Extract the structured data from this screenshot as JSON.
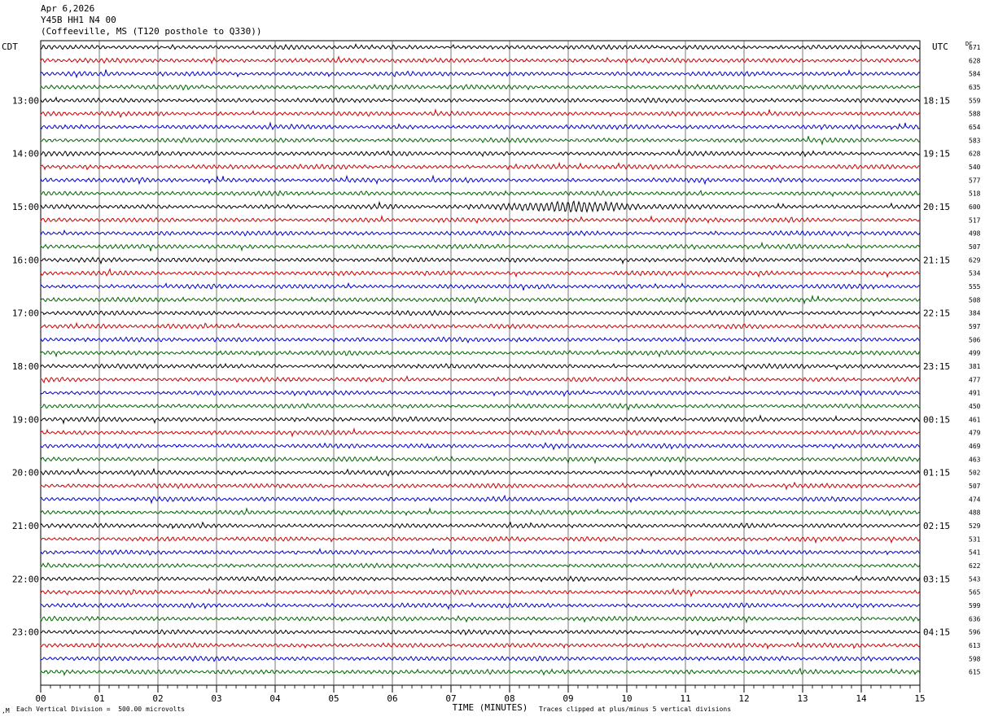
{
  "header": {
    "date": "Apr 6,2026",
    "station": "Y45B HH1 N4 00",
    "location": "(Coffeeville, MS (T120 posthole to Q330))"
  },
  "chart_data": {
    "type": "line",
    "title": "",
    "xlabel": "TIME (MINUTES)",
    "left_axis_label": "CDT",
    "right_axis_label": "UTC",
    "dc_label": "DC",
    "xlim": [
      0,
      15
    ],
    "x_ticks": [
      "00",
      "01",
      "02",
      "03",
      "04",
      "05",
      "06",
      "07",
      "08",
      "09",
      "10",
      "11",
      "12",
      "13",
      "14",
      "15"
    ],
    "left_time_labels": [
      "13:00",
      "14:00",
      "15:00",
      "16:00",
      "17:00",
      "18:00",
      "19:00",
      "20:00",
      "21:00",
      "22:00",
      "23:00"
    ],
    "right_time_labels": [
      "18:15",
      "19:15",
      "20:15",
      "21:15",
      "22:15",
      "23:15",
      "00:15",
      "01:15",
      "02:15",
      "03:15",
      "04:15"
    ],
    "trace_colors": [
      "#000000",
      "#cc0000",
      "#0000cc",
      "#006400"
    ],
    "dc_offsets": [
      "671",
      "628",
      "584",
      "635",
      "559",
      "588",
      "654",
      "583",
      "628",
      "540",
      "577",
      "518",
      "600",
      "517",
      "498",
      "507",
      "629",
      "534",
      "555",
      "508",
      "384",
      "597",
      "506",
      "499",
      "381",
      "477",
      "491",
      "450",
      "461",
      "479",
      "469",
      "463",
      "502",
      "507",
      "474",
      "488",
      "529",
      "531",
      "541",
      "622",
      "543",
      "565",
      "599",
      "636",
      "596",
      "613",
      "598",
      "615"
    ],
    "event": {
      "trace_index": 12,
      "start_minute": 7.0,
      "end_minute": 11.0,
      "peak_minute": 8.9
    },
    "footer_scale": "Each Vertical Division =  500.00 microvolts",
    "footer_clip": "Traces clipped at plus/minus 5 vertical divisions"
  }
}
